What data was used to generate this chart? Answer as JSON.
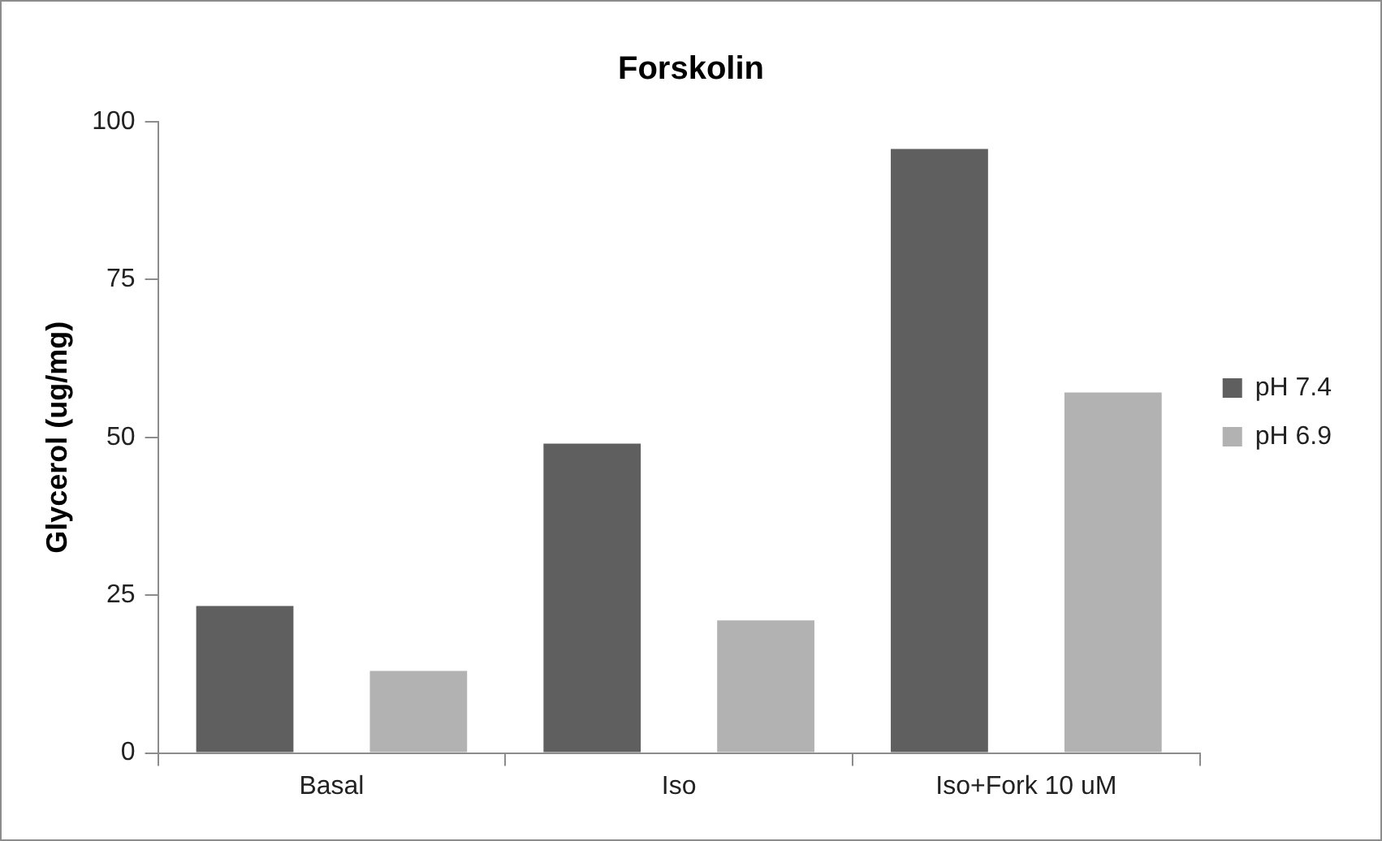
{
  "chart_data": {
    "type": "bar",
    "title": "Forskolin",
    "ylabel": "Glycerol (ug/mg)",
    "categories": [
      "Basal",
      "Iso",
      "Iso+Fork 10 uM"
    ],
    "series": [
      {
        "name": "pH 7.4",
        "color": "#5f5f5f",
        "values": [
          23.3,
          49.0,
          95.7
        ]
      },
      {
        "name": "pH 6.9",
        "color": "#b2b2b2",
        "values": [
          13.0,
          21.0,
          57.1
        ]
      }
    ],
    "ylim": [
      0,
      100
    ],
    "yticks": [
      0,
      25,
      50,
      75,
      100
    ],
    "grid": false,
    "legend": "right"
  }
}
